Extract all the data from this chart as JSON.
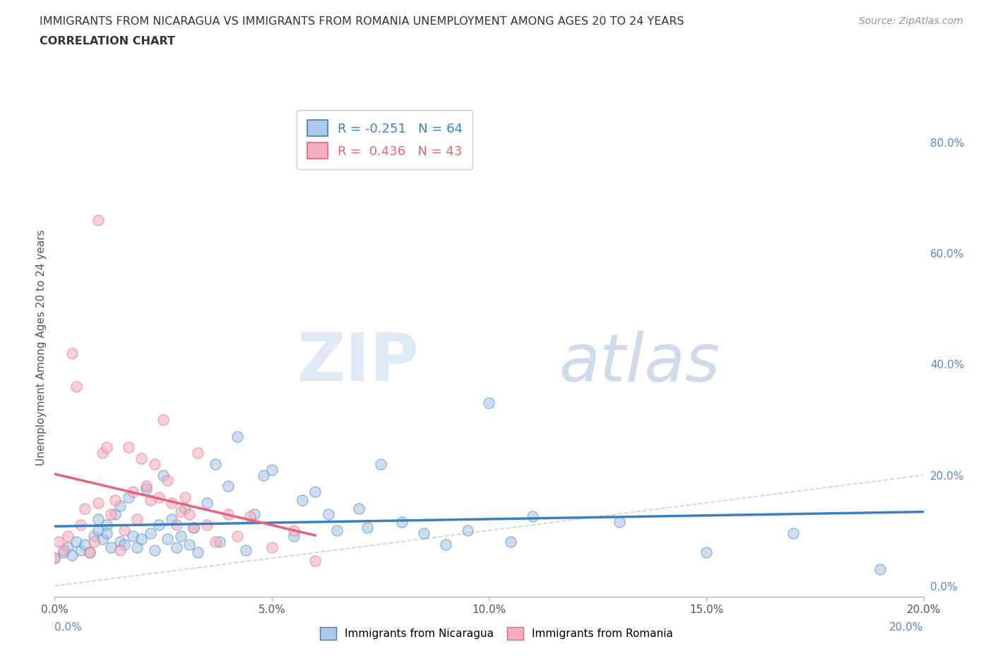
{
  "title_line1": "IMMIGRANTS FROM NICARAGUA VS IMMIGRANTS FROM ROMANIA UNEMPLOYMENT AMONG AGES 20 TO 24 YEARS",
  "title_line2": "CORRELATION CHART",
  "source_text": "Source: ZipAtlas.com",
  "ylabel": "Unemployment Among Ages 20 to 24 years",
  "xlim": [
    0.0,
    0.2
  ],
  "ylim": [
    -0.02,
    0.88
  ],
  "watermark_zip": "ZIP",
  "watermark_atlas": "atlas",
  "right_yticks": [
    0.0,
    0.2,
    0.4,
    0.6,
    0.8
  ],
  "right_yticklabels": [
    "0.0%",
    "20.0%",
    "40.0%",
    "60.0%",
    "80.0%"
  ],
  "xticks": [
    0.0,
    0.05,
    0.1,
    0.15,
    0.2
  ],
  "xticklabels": [
    "0.0%",
    "5.0%",
    "10.0%",
    "15.0%",
    "20.0%"
  ],
  "bottom_xtick_left": "0.0%",
  "bottom_xtick_right": "20.0%",
  "legend_nicaragua": "Immigrants from Nicaragua",
  "legend_romania": "Immigrants from Romania",
  "R_nicaragua": -0.251,
  "N_nicaragua": 64,
  "R_romania": 0.436,
  "N_romania": 43,
  "color_nicaragua": "#adc8e8",
  "color_romania": "#f5afc0",
  "line_color_nicaragua": "#3a7fc1",
  "line_color_romania": "#e8637a",
  "diagonal_color": "#cccccc",
  "nicaragua_x": [
    0.0,
    0.002,
    0.003,
    0.004,
    0.005,
    0.006,
    0.007,
    0.008,
    0.009,
    0.01,
    0.01,
    0.011,
    0.012,
    0.012,
    0.013,
    0.014,
    0.015,
    0.015,
    0.016,
    0.017,
    0.018,
    0.019,
    0.02,
    0.021,
    0.022,
    0.023,
    0.024,
    0.025,
    0.026,
    0.027,
    0.028,
    0.029,
    0.03,
    0.031,
    0.032,
    0.033,
    0.035,
    0.037,
    0.038,
    0.04,
    0.042,
    0.044,
    0.046,
    0.048,
    0.05,
    0.055,
    0.057,
    0.06,
    0.063,
    0.065,
    0.07,
    0.072,
    0.075,
    0.08,
    0.085,
    0.09,
    0.095,
    0.1,
    0.105,
    0.11,
    0.13,
    0.15,
    0.17,
    0.19
  ],
  "nicaragua_y": [
    0.05,
    0.06,
    0.07,
    0.055,
    0.08,
    0.065,
    0.075,
    0.06,
    0.09,
    0.1,
    0.12,
    0.085,
    0.11,
    0.095,
    0.07,
    0.13,
    0.145,
    0.08,
    0.075,
    0.16,
    0.09,
    0.07,
    0.085,
    0.175,
    0.095,
    0.065,
    0.11,
    0.2,
    0.085,
    0.12,
    0.07,
    0.09,
    0.14,
    0.075,
    0.105,
    0.06,
    0.15,
    0.22,
    0.08,
    0.18,
    0.27,
    0.065,
    0.13,
    0.2,
    0.21,
    0.09,
    0.155,
    0.17,
    0.13,
    0.1,
    0.14,
    0.105,
    0.22,
    0.115,
    0.095,
    0.075,
    0.1,
    0.33,
    0.08,
    0.125,
    0.115,
    0.06,
    0.095,
    0.03
  ],
  "romania_x": [
    0.0,
    0.001,
    0.002,
    0.003,
    0.004,
    0.005,
    0.006,
    0.007,
    0.008,
    0.009,
    0.01,
    0.01,
    0.011,
    0.012,
    0.013,
    0.014,
    0.015,
    0.016,
    0.017,
    0.018,
    0.019,
    0.02,
    0.021,
    0.022,
    0.023,
    0.024,
    0.025,
    0.026,
    0.027,
    0.028,
    0.029,
    0.03,
    0.031,
    0.032,
    0.033,
    0.035,
    0.037,
    0.04,
    0.042,
    0.045,
    0.05,
    0.055,
    0.06
  ],
  "romania_y": [
    0.05,
    0.08,
    0.065,
    0.09,
    0.42,
    0.36,
    0.11,
    0.14,
    0.06,
    0.08,
    0.66,
    0.15,
    0.24,
    0.25,
    0.13,
    0.155,
    0.065,
    0.1,
    0.25,
    0.17,
    0.12,
    0.23,
    0.18,
    0.155,
    0.22,
    0.16,
    0.3,
    0.19,
    0.15,
    0.11,
    0.135,
    0.16,
    0.13,
    0.105,
    0.24,
    0.11,
    0.08,
    0.13,
    0.09,
    0.125,
    0.07,
    0.1,
    0.045
  ],
  "grid_color": "#d8d8d8",
  "title_color": "#333333",
  "axis_label_color": "#555555",
  "right_axis_color": "#5588cc",
  "background_color": "#ffffff"
}
